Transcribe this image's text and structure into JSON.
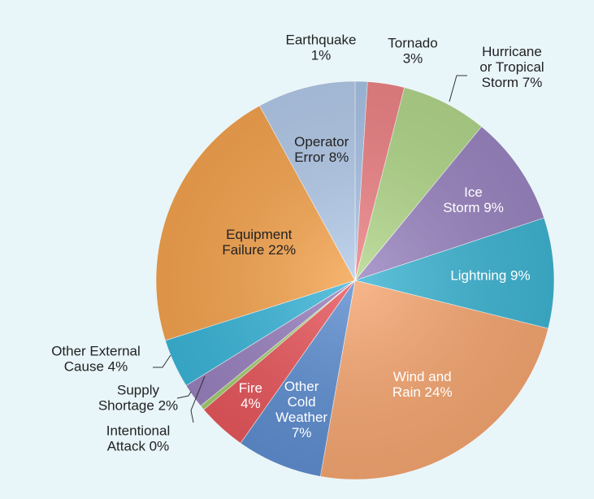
{
  "chart_data": {
    "type": "pie",
    "title": "",
    "start_angle_deg": 0,
    "direction": "clockwise",
    "slices": [
      {
        "name": "Earthquake",
        "label_lines": [
          "Earthquake",
          "1%"
        ],
        "value": 1,
        "color": "#a9c4e6",
        "label_color": "#222222"
      },
      {
        "name": "Tornado",
        "label_lines": [
          "Tornado",
          "3%"
        ],
        "value": 3,
        "color": "#ee8487",
        "label_color": "#222222"
      },
      {
        "name": "Hurricane or Tropical Storm",
        "label_lines": [
          "Hurricane",
          "or Tropical",
          "Storm 7%"
        ],
        "value": 7,
        "color": "#b3d88c",
        "label_color": "#222222"
      },
      {
        "name": "Ice Storm",
        "label_lines": [
          "Ice",
          "Storm 9%"
        ],
        "value": 9,
        "color": "#9b86c2",
        "label_color": "#ffffff"
      },
      {
        "name": "Lightning",
        "label_lines": [
          "Lightning 9%"
        ],
        "value": 9,
        "color": "#3fb5d3",
        "label_color": "#ffffff"
      },
      {
        "name": "Wind and Rain",
        "label_lines": [
          "Wind and",
          "Rain 24%"
        ],
        "value": 24,
        "color": "#f6a772",
        "label_color": "#ffffff"
      },
      {
        "name": "Other Cold Weather",
        "label_lines": [
          "Other",
          "Cold",
          "Weather",
          "7%"
        ],
        "value": 7,
        "color": "#5f8fd1",
        "label_color": "#ffffff"
      },
      {
        "name": "Fire",
        "label_lines": [
          "Fire",
          "4%"
        ],
        "value": 4,
        "color": "#e8585d",
        "label_color": "#ffffff"
      },
      {
        "name": "Intentional Attack",
        "label_lines": [
          "Intentional",
          "Attack 0%"
        ],
        "value": 0.4,
        "color": "#a4cf6e",
        "label_color": "#222222"
      },
      {
        "name": "Supply Shortage",
        "label_lines": [
          "Supply",
          "Shortage 2%"
        ],
        "value": 2,
        "color": "#9a82c0",
        "label_color": "#222222"
      },
      {
        "name": "Other External Cause",
        "label_lines": [
          "Other External",
          "Cause 4%"
        ],
        "value": 4,
        "color": "#3cb6d9",
        "label_color": "#222222"
      },
      {
        "name": "Equipment Failure",
        "label_lines": [
          "Equipment",
          "Failure 22%"
        ],
        "value": 22,
        "color": "#f5a44f",
        "label_color": "#222222"
      },
      {
        "name": "Operator Error",
        "label_lines": [
          "Operator",
          "Error 8%"
        ],
        "value": 8,
        "color": "#b4cbea",
        "label_color": "#222222"
      }
    ]
  }
}
